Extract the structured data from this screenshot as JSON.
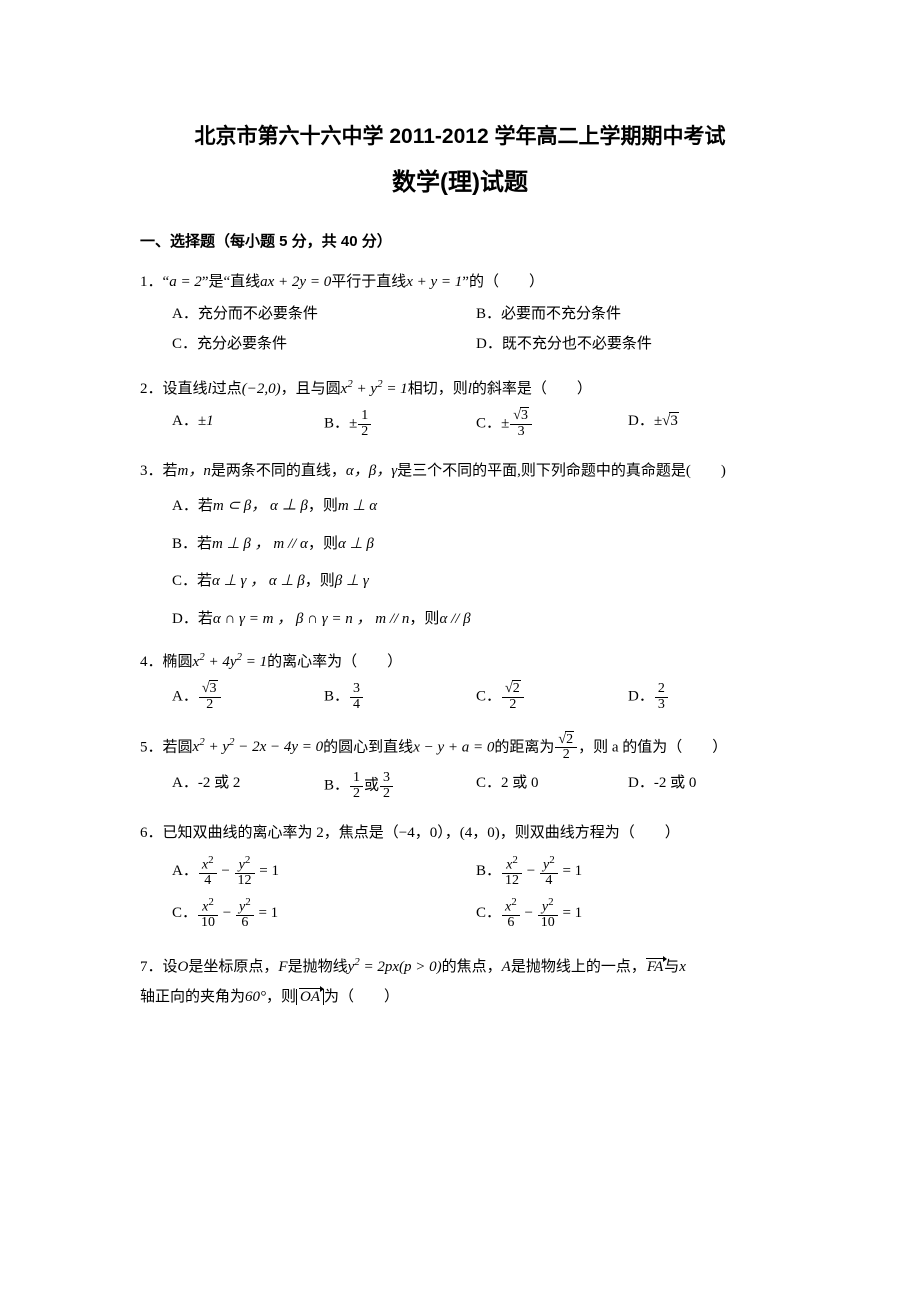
{
  "title_line1": "北京市第六十六中学 2011-2012 学年高二上学期期中考试",
  "title_line2": "数学(理)试题",
  "section1": "一、选择题（每小题 5 分，共 40 分）",
  "q1": {
    "num": "1．",
    "stem_a": "“",
    "stem_eq1": "a = 2",
    "stem_b": "”是“直线",
    "stem_eq2": "ax + 2y = 0",
    "stem_c": "平行于直线",
    "stem_eq3": "x + y = 1",
    "stem_d": "”的（　　）",
    "A": "A．充分而不必要条件",
    "B": "B．必要而不充分条件",
    "C": "C．充分必要条件",
    "D": "D．既不充分也不必要条件"
  },
  "q2": {
    "num": "2．",
    "stem_a": "设直线",
    "stem_l": "l",
    "stem_b": "过点",
    "stem_pt": "(−2,0)",
    "stem_c": "，且与圆",
    "stem_circ": "x",
    "stem_circ2": " + y",
    "stem_circ3": " = 1",
    "stem_d": "相切，则",
    "stem_e": "的斜率是（　　）",
    "A": "A．",
    "Aval": "±1",
    "B": "B．",
    "B_pm": "±",
    "B_num": "1",
    "B_den": "2",
    "C": "C．",
    "C_pm": "±",
    "C_sqrt": "3",
    "C_den": "3",
    "D": "D．",
    "D_pm": "±",
    "D_sqrt": "3"
  },
  "q3": {
    "num": "3．",
    "stem_a": "若",
    "stem_mn": "m，n",
    "stem_b": "是两条不同的直线，",
    "stem_abc": "α，β，γ",
    "stem_c": "是三个不同的平面,则下列命题中的真命题是(　　)",
    "A": "A．若",
    "A1": "m ⊂ β， α ⊥ β",
    "A2": "，则",
    "A3": "m ⊥ α",
    "B": "B．若",
    "B1": "m ⊥ β ， m // α",
    "B2": "，则",
    "B3": "α ⊥ β",
    "Cpre": "C．若",
    "C1": "α ⊥ γ ， α ⊥ β",
    "C2": "，则",
    "C3": "β ⊥ γ",
    "D": "D．若",
    "D1": "α ∩ γ = m ， β ∩ γ = n ， m // n",
    "D2": "，则",
    "D3": "α // β"
  },
  "q4": {
    "num": "4．",
    "stem_a": "椭圆",
    "stem_eq_x": "x",
    "stem_eq_mid": " + 4y",
    "stem_eq_end": " = 1",
    "stem_b": "的离心率为（　　）",
    "A": "A．",
    "A_sqrt": "3",
    "A_den": "2",
    "B": "B．",
    "B_num": "3",
    "B_den": "4",
    "C": "C．",
    "C_sqrt": "2",
    "C_den": "2",
    "D": "D．",
    "D_num": "2",
    "D_den": "3"
  },
  "q5": {
    "num": "5．",
    "stem_a": "若圆",
    "stem_eq": "x",
    "stem_eq2": " + y",
    "stem_eq3": " − 2x − 4y = 0",
    "stem_b": "的圆心到直线",
    "stem_line": "x − y + a = 0",
    "stem_c": "的距离为",
    "stem_sqrt": "2",
    "stem_den": "2",
    "stem_d": "，则 a 的值为（　　）",
    "A": "A．-2 或 2",
    "B": "B．",
    "B_n1": "1",
    "B_d1": "2",
    "B_or": "或",
    "B_n2": "3",
    "B_d2": "2",
    "C": "C．2 或 0",
    "D": "D．-2 或 0"
  },
  "q6": {
    "num": "6．",
    "stem": "已知双曲线的离心率为 2，焦点是（−4，0），(4，0)，则双曲线方程为（　　）",
    "A": "A．",
    "Ax": "x",
    "Ad1": "4",
    "Ay": "y",
    "Ad2": "12",
    "Aeq": " = 1",
    "B": "B．",
    "Bd1": "12",
    "Bd2": "4",
    "C": "C．",
    "Cd1": "10",
    "Cd2": "6",
    "C2": "C．",
    "C2d1": "6",
    "C2d2": "10"
  },
  "q7": {
    "num": "7．",
    "stem_a": "设",
    "stem_O": "O",
    "stem_b": "是坐标原点，",
    "stem_F": "F",
    "stem_c": "是抛物线",
    "stem_eq_y": "y",
    "stem_eq_mid": " = 2px(p > 0)",
    "stem_d": "的焦点，",
    "stem_A": "A",
    "stem_e": "是抛物线上的一点，",
    "stem_FA": "FA",
    "stem_f": "与",
    "stem_x": "x",
    "stem_g": "轴正向的夹角为",
    "stem_ang": "60°",
    "stem_h": "，则",
    "stem_OA": "OA",
    "stem_i": "为（　　）"
  }
}
